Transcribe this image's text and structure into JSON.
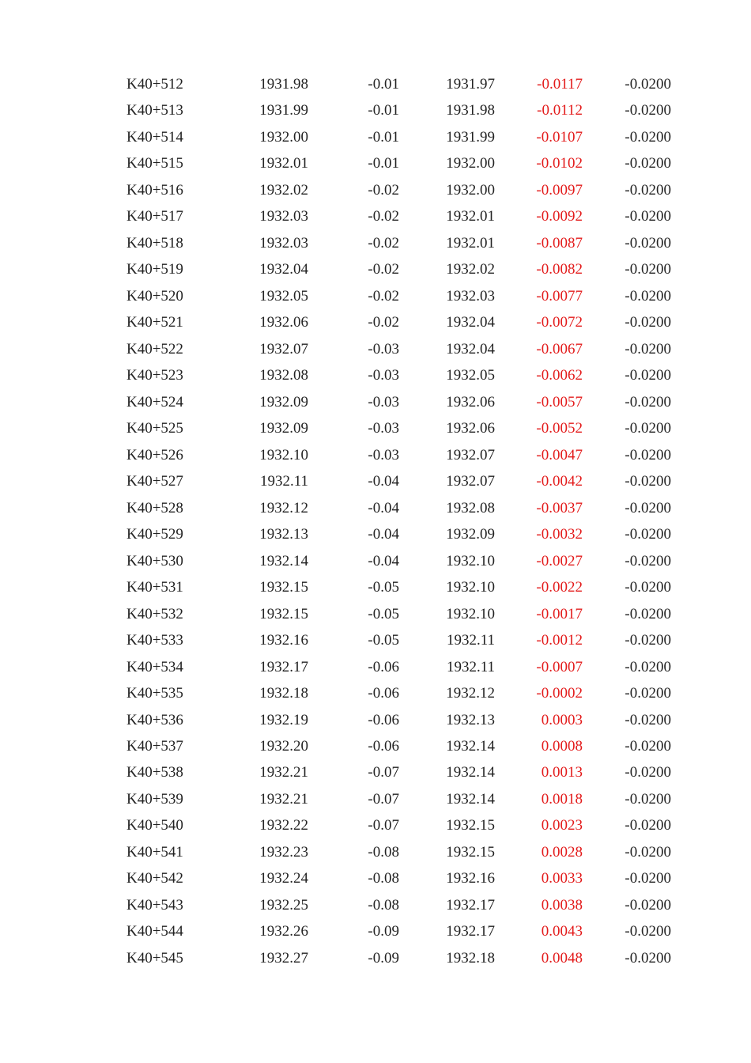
{
  "colors": {
    "text": "#222222",
    "highlight": "#e31b1b"
  },
  "rows": [
    [
      "K40+512",
      "1931.98",
      "-0.01",
      "1931.97",
      "-0.0117",
      "-0.0200"
    ],
    [
      "K40+513",
      "1931.99",
      "-0.01",
      "1931.98",
      "-0.0112",
      "-0.0200"
    ],
    [
      "K40+514",
      "1932.00",
      "-0.01",
      "1931.99",
      "-0.0107",
      "-0.0200"
    ],
    [
      "K40+515",
      "1932.01",
      "-0.01",
      "1932.00",
      "-0.0102",
      "-0.0200"
    ],
    [
      "K40+516",
      "1932.02",
      "-0.02",
      "1932.00",
      "-0.0097",
      "-0.0200"
    ],
    [
      "K40+517",
      "1932.03",
      "-0.02",
      "1932.01",
      "-0.0092",
      "-0.0200"
    ],
    [
      "K40+518",
      "1932.03",
      "-0.02",
      "1932.01",
      "-0.0087",
      "-0.0200"
    ],
    [
      "K40+519",
      "1932.04",
      "-0.02",
      "1932.02",
      "-0.0082",
      "-0.0200"
    ],
    [
      "K40+520",
      "1932.05",
      "-0.02",
      "1932.03",
      "-0.0077",
      "-0.0200"
    ],
    [
      "K40+521",
      "1932.06",
      "-0.02",
      "1932.04",
      "-0.0072",
      "-0.0200"
    ],
    [
      "K40+522",
      "1932.07",
      "-0.03",
      "1932.04",
      "-0.0067",
      "-0.0200"
    ],
    [
      "K40+523",
      "1932.08",
      "-0.03",
      "1932.05",
      "-0.0062",
      "-0.0200"
    ],
    [
      "K40+524",
      "1932.09",
      "-0.03",
      "1932.06",
      "-0.0057",
      "-0.0200"
    ],
    [
      "K40+525",
      "1932.09",
      "-0.03",
      "1932.06",
      "-0.0052",
      "-0.0200"
    ],
    [
      "K40+526",
      "1932.10",
      "-0.03",
      "1932.07",
      "-0.0047",
      "-0.0200"
    ],
    [
      "K40+527",
      "1932.11",
      "-0.04",
      "1932.07",
      "-0.0042",
      "-0.0200"
    ],
    [
      "K40+528",
      "1932.12",
      "-0.04",
      "1932.08",
      "-0.0037",
      "-0.0200"
    ],
    [
      "K40+529",
      "1932.13",
      "-0.04",
      "1932.09",
      "-0.0032",
      "-0.0200"
    ],
    [
      "K40+530",
      "1932.14",
      "-0.04",
      "1932.10",
      "-0.0027",
      "-0.0200"
    ],
    [
      "K40+531",
      "1932.15",
      "-0.05",
      "1932.10",
      "-0.0022",
      "-0.0200"
    ],
    [
      "K40+532",
      "1932.15",
      "-0.05",
      "1932.10",
      "-0.0017",
      "-0.0200"
    ],
    [
      "K40+533",
      "1932.16",
      "-0.05",
      "1932.11",
      "-0.0012",
      "-0.0200"
    ],
    [
      "K40+534",
      "1932.17",
      "-0.06",
      "1932.11",
      "-0.0007",
      "-0.0200"
    ],
    [
      "K40+535",
      "1932.18",
      "-0.06",
      "1932.12",
      "-0.0002",
      "-0.0200"
    ],
    [
      "K40+536",
      "1932.19",
      "-0.06",
      "1932.13",
      "0.0003",
      "-0.0200"
    ],
    [
      "K40+537",
      "1932.20",
      "-0.06",
      "1932.14",
      "0.0008",
      "-0.0200"
    ],
    [
      "K40+538",
      "1932.21",
      "-0.07",
      "1932.14",
      "0.0013",
      "-0.0200"
    ],
    [
      "K40+539",
      "1932.21",
      "-0.07",
      "1932.14",
      "0.0018",
      "-0.0200"
    ],
    [
      "K40+540",
      "1932.22",
      "-0.07",
      "1932.15",
      "0.0023",
      "-0.0200"
    ],
    [
      "K40+541",
      "1932.23",
      "-0.08",
      "1932.15",
      "0.0028",
      "-0.0200"
    ],
    [
      "K40+542",
      "1932.24",
      "-0.08",
      "1932.16",
      "0.0033",
      "-0.0200"
    ],
    [
      "K40+543",
      "1932.25",
      "-0.08",
      "1932.17",
      "0.0038",
      "-0.0200"
    ],
    [
      "K40+544",
      "1932.26",
      "-0.09",
      "1932.17",
      "0.0043",
      "-0.0200"
    ],
    [
      "K40+545",
      "1932.27",
      "-0.09",
      "1932.18",
      "0.0048",
      "-0.0200"
    ]
  ]
}
